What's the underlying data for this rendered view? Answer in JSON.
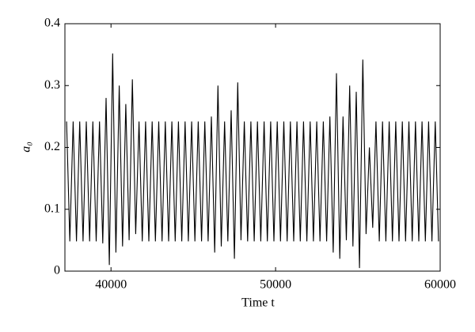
{
  "chart_data": {
    "type": "line",
    "xlabel": "Time t",
    "ylabel": "a₀",
    "x": [
      37300,
      37500,
      37700,
      37900,
      38100,
      38300,
      38500,
      38700,
      38900,
      39100,
      39300,
      39500,
      39700,
      39900,
      40100,
      40300,
      40500,
      40700,
      40900,
      41100,
      41300,
      41500,
      41700,
      41900,
      42100,
      42300,
      42500,
      42700,
      42900,
      43100,
      43300,
      43500,
      43700,
      43900,
      44100,
      44300,
      44500,
      44700,
      44900,
      45100,
      45300,
      45500,
      45700,
      45900,
      46100,
      46300,
      46500,
      46700,
      46900,
      47100,
      47300,
      47500,
      47700,
      47900,
      48100,
      48300,
      48500,
      48700,
      48900,
      49100,
      49300,
      49500,
      49700,
      49900,
      50100,
      50300,
      50500,
      50700,
      50900,
      51100,
      51300,
      51500,
      51700,
      51900,
      52100,
      52300,
      52500,
      52700,
      52900,
      53100,
      53300,
      53500,
      53700,
      53900,
      54100,
      54300,
      54500,
      54700,
      54900,
      55100,
      55300,
      55500,
      55700,
      55900,
      56100,
      56300,
      56500,
      56700,
      56900,
      57100,
      57300,
      57500,
      57700,
      57900,
      58100,
      58300,
      58500,
      58700,
      58900,
      59100,
      59300,
      59500,
      59700,
      59900
    ],
    "values": [
      0.242,
      0.048,
      0.242,
      0.048,
      0.242,
      0.048,
      0.242,
      0.048,
      0.242,
      0.048,
      0.242,
      0.045,
      0.28,
      0.01,
      0.352,
      0.03,
      0.3,
      0.04,
      0.27,
      0.05,
      0.31,
      0.06,
      0.242,
      0.048,
      0.242,
      0.048,
      0.242,
      0.048,
      0.242,
      0.048,
      0.242,
      0.048,
      0.242,
      0.048,
      0.242,
      0.048,
      0.242,
      0.048,
      0.242,
      0.048,
      0.242,
      0.048,
      0.242,
      0.048,
      0.25,
      0.03,
      0.3,
      0.04,
      0.242,
      0.048,
      0.26,
      0.02,
      0.305,
      0.05,
      0.242,
      0.048,
      0.242,
      0.048,
      0.242,
      0.048,
      0.242,
      0.048,
      0.242,
      0.048,
      0.242,
      0.048,
      0.242,
      0.048,
      0.242,
      0.048,
      0.242,
      0.048,
      0.242,
      0.048,
      0.242,
      0.048,
      0.242,
      0.048,
      0.242,
      0.048,
      0.25,
      0.03,
      0.32,
      0.02,
      0.25,
      0.05,
      0.3,
      0.04,
      0.29,
      0.005,
      0.342,
      0.06,
      0.2,
      0.07,
      0.242,
      0.048,
      0.242,
      0.048,
      0.242,
      0.048,
      0.242,
      0.048,
      0.242,
      0.048,
      0.242,
      0.048,
      0.242,
      0.048,
      0.242,
      0.048,
      0.242,
      0.048,
      0.242,
      0.048
    ],
    "color": "#000000",
    "xlim": [
      37200,
      60000
    ],
    "xticks": [
      40000,
      50000,
      60000
    ],
    "ylim": [
      0,
      0.4
    ],
    "yticks": [
      0,
      0.1,
      0.2,
      0.3,
      0.4
    ]
  }
}
